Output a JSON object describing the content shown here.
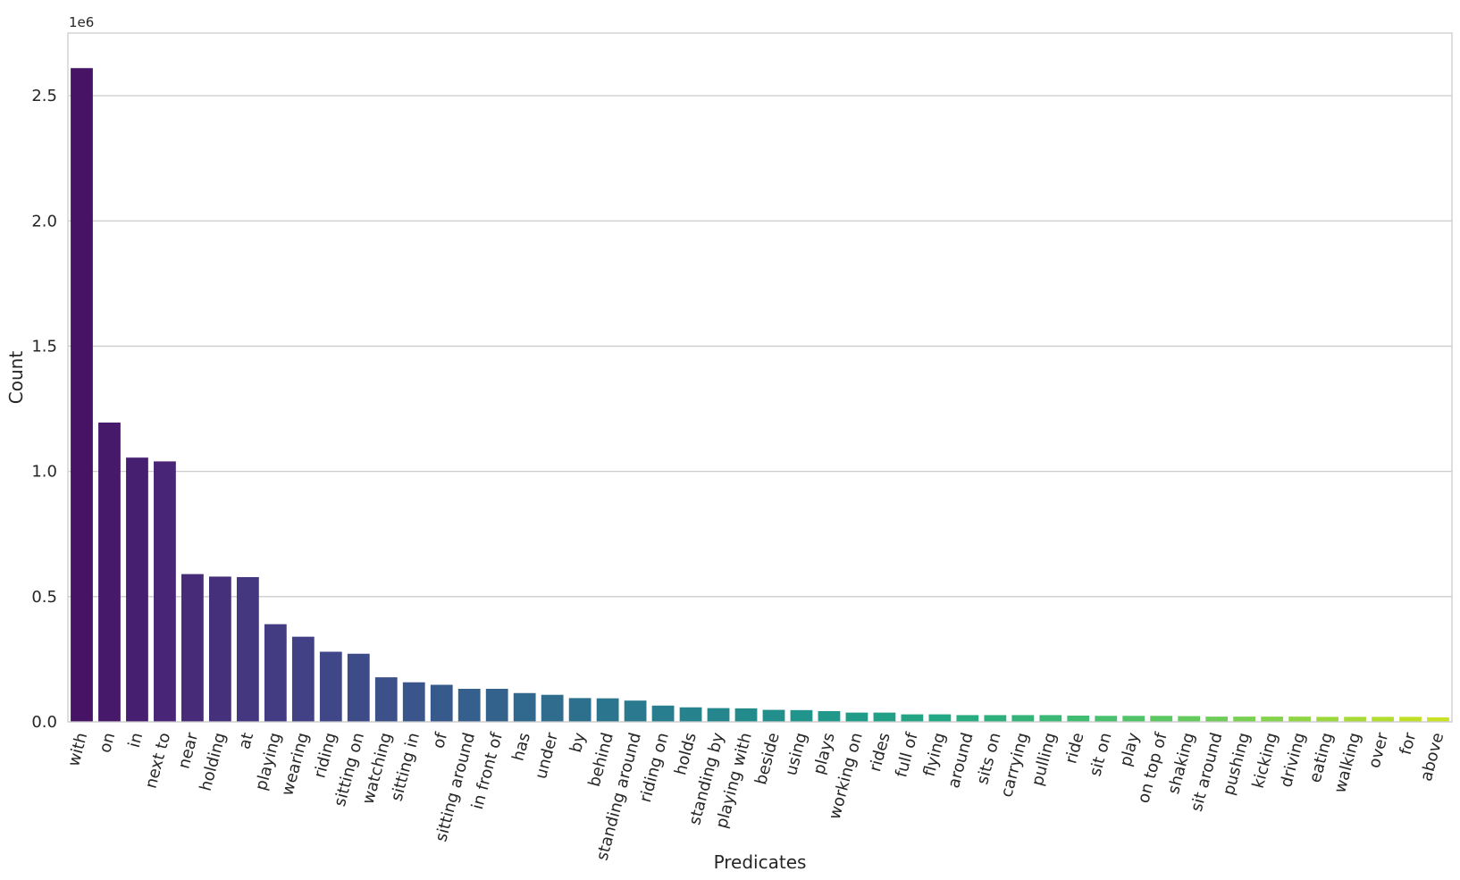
{
  "chart_data": {
    "type": "bar",
    "title": "",
    "xlabel": "Predicates",
    "ylabel": "Count",
    "y_offset_label": "1e6",
    "ylim": [
      0,
      2750000
    ],
    "yticks": [
      0,
      500000,
      1000000,
      1500000,
      2000000,
      2500000
    ],
    "ytick_labels": [
      "0.0",
      "0.5",
      "1.0",
      "1.5",
      "2.0",
      "2.5"
    ],
    "grid": "horizontal",
    "colormap": "viridis",
    "categories": [
      "with",
      "on",
      "in",
      "next to",
      "near",
      "holding",
      "at",
      "playing",
      "wearing",
      "riding",
      "sitting on",
      "watching",
      "sitting in",
      "of",
      "sitting around",
      "in front of",
      "has",
      "under",
      "by",
      "behind",
      "standing around",
      "riding on",
      "holds",
      "standing by",
      "playing with",
      "beside",
      "using",
      "plays",
      "working on",
      "rides",
      "full of",
      "flying",
      "around",
      "sits on",
      "carrying",
      "pulling",
      "ride",
      "sit on",
      "play",
      "on top of",
      "shaking",
      "sit around",
      "pushing",
      "kicking",
      "driving",
      "eating",
      "walking",
      "over",
      "for",
      "above"
    ],
    "values": [
      2610000,
      1195000,
      1055000,
      1040000,
      590000,
      580000,
      578000,
      390000,
      340000,
      280000,
      272000,
      178000,
      158000,
      148000,
      132000,
      132000,
      115000,
      108000,
      95000,
      94000,
      85000,
      65000,
      58000,
      55000,
      54000,
      48000,
      47000,
      43000,
      37000,
      37000,
      30000,
      30000,
      27000,
      27000,
      27000,
      27000,
      25000,
      24000,
      24000,
      24000,
      23000,
      21000,
      21000,
      21000,
      21000,
      20000,
      20000,
      20000,
      20000,
      18000
    ]
  }
}
